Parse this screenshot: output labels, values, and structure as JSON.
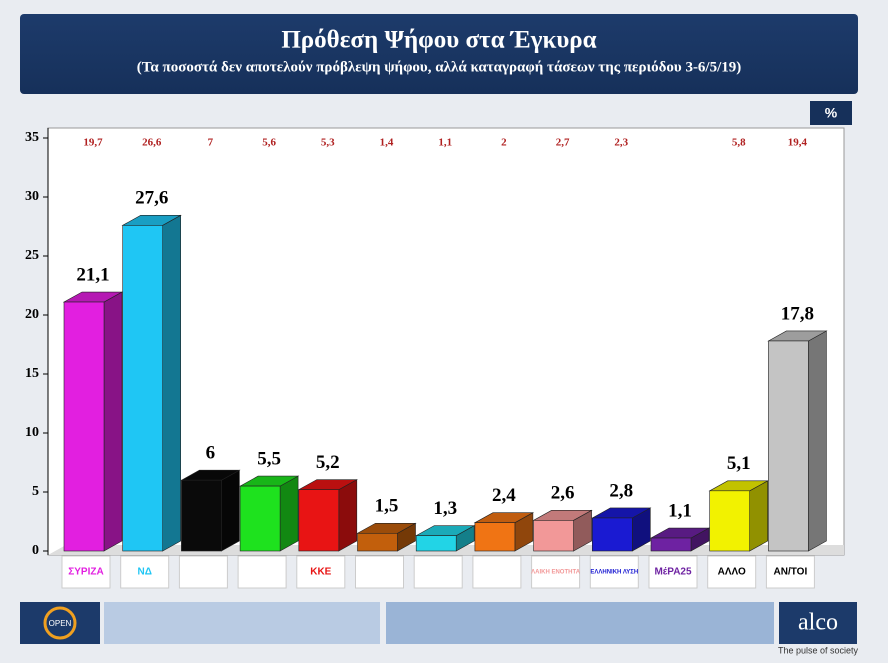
{
  "chart_data": {
    "type": "bar3d",
    "title": "Πρόθεση Ψήφου στα Έγκυρα",
    "subtitle": "(Τα ποσοστά δεν αποτελούν πρόβλεψη ψήφου, αλλά καταγραφή τάσεων της περιόδου 3-6/5/19)",
    "unit": "%",
    "categories": [
      "ΣΥΡΙΖΑ",
      "ΝΔ",
      null,
      null,
      "ΚΚΕ",
      null,
      null,
      null,
      "ΛΑΙΚΗ ΕΝΟΤΗΤΑ",
      "ΕΛΛΗΝΙΚΗ ΛΥΣΗ",
      "ΜέΡΑ25",
      "ΑΛΛΟ",
      "ΑΝ/ΤΟΙ"
    ],
    "values": [
      21.1,
      27.6,
      6,
      5.5,
      5.2,
      1.5,
      1.3,
      2.4,
      2.6,
      2.8,
      1.1,
      5.1,
      17.8
    ],
    "value_labels": [
      "21,1",
      "27,6",
      "6",
      "5,5",
      "5,2",
      "1,5",
      "1,3",
      "2,4",
      "2,6",
      "2,8",
      "1,1",
      "5,1",
      "17,8"
    ],
    "colors": [
      "#e21fe0",
      "#1fc6f4",
      "#0a0a0a",
      "#1ee21e",
      "#e81414",
      "#c25f0c",
      "#22d4e6",
      "#f07414",
      "#f29898",
      "#1a1ad2",
      "#6e22a2",
      "#f2f200",
      "#c4c4c4"
    ],
    "previous": {
      "values": [
        19.7,
        26.6,
        7,
        5.6,
        5.3,
        1.4,
        1.1,
        2,
        2.7,
        2.3,
        null,
        5.8,
        19.4
      ],
      "value_labels": [
        "19,7",
        "26,6",
        "7",
        "5,6",
        "5,3",
        "1,4",
        "1,1",
        "2",
        "2,7",
        "2,3",
        null,
        "5,8",
        "19,4"
      ]
    },
    "ylim": [
      0,
      35
    ],
    "yticks": [
      0,
      5,
      10,
      15,
      20,
      25,
      30,
      35
    ]
  },
  "footer": {
    "brand": "alco",
    "tagline": "The pulse of society",
    "channel": "OPEN"
  }
}
